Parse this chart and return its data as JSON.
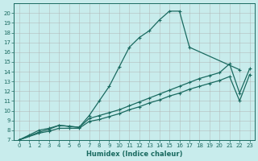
{
  "xlabel": "Humidex (Indice chaleur)",
  "bg_color": "#c8ecec",
  "grid_color": "#b0b0b0",
  "line_color": "#1a6a60",
  "xlim": [
    -0.5,
    23.5
  ],
  "ylim": [
    7,
    21
  ],
  "xticks": [
    0,
    1,
    2,
    3,
    4,
    5,
    6,
    7,
    8,
    9,
    10,
    11,
    12,
    13,
    14,
    15,
    16,
    17,
    18,
    19,
    20,
    21,
    22,
    23
  ],
  "yticks": [
    7,
    8,
    9,
    10,
    11,
    12,
    13,
    14,
    15,
    16,
    17,
    18,
    19,
    20
  ],
  "line1_x": [
    0,
    1,
    2,
    3,
    4,
    5,
    6,
    7,
    8,
    9,
    10,
    11,
    12,
    13,
    14,
    15,
    16,
    17,
    22
  ],
  "line1_y": [
    7,
    7.5,
    8.0,
    8.2,
    8.5,
    8.4,
    8.3,
    9.5,
    11.0,
    12.5,
    14.5,
    16.5,
    17.5,
    18.2,
    19.3,
    20.2,
    20.2,
    16.5,
    14.2
  ],
  "line2_x": [
    0,
    2,
    3,
    4,
    5,
    6,
    7,
    8,
    9,
    10,
    11,
    12,
    13,
    14,
    15,
    16,
    17,
    18,
    19,
    20,
    21,
    22,
    23
  ],
  "line2_y": [
    7,
    7.8,
    8.1,
    8.5,
    8.4,
    8.3,
    9.2,
    9.5,
    9.8,
    10.1,
    10.5,
    10.9,
    11.3,
    11.7,
    12.1,
    12.5,
    12.9,
    13.3,
    13.6,
    13.9,
    14.8,
    11.8,
    14.3
  ],
  "line3_x": [
    0,
    2,
    3,
    4,
    5,
    6,
    7,
    8,
    9,
    10,
    11,
    12,
    13,
    14,
    15,
    16,
    17,
    18,
    19,
    20,
    21,
    22,
    23
  ],
  "line3_y": [
    7,
    7.7,
    7.9,
    8.2,
    8.2,
    8.2,
    8.9,
    9.1,
    9.4,
    9.7,
    10.1,
    10.4,
    10.8,
    11.1,
    11.5,
    11.8,
    12.2,
    12.5,
    12.8,
    13.1,
    13.5,
    11.0,
    13.7
  ]
}
